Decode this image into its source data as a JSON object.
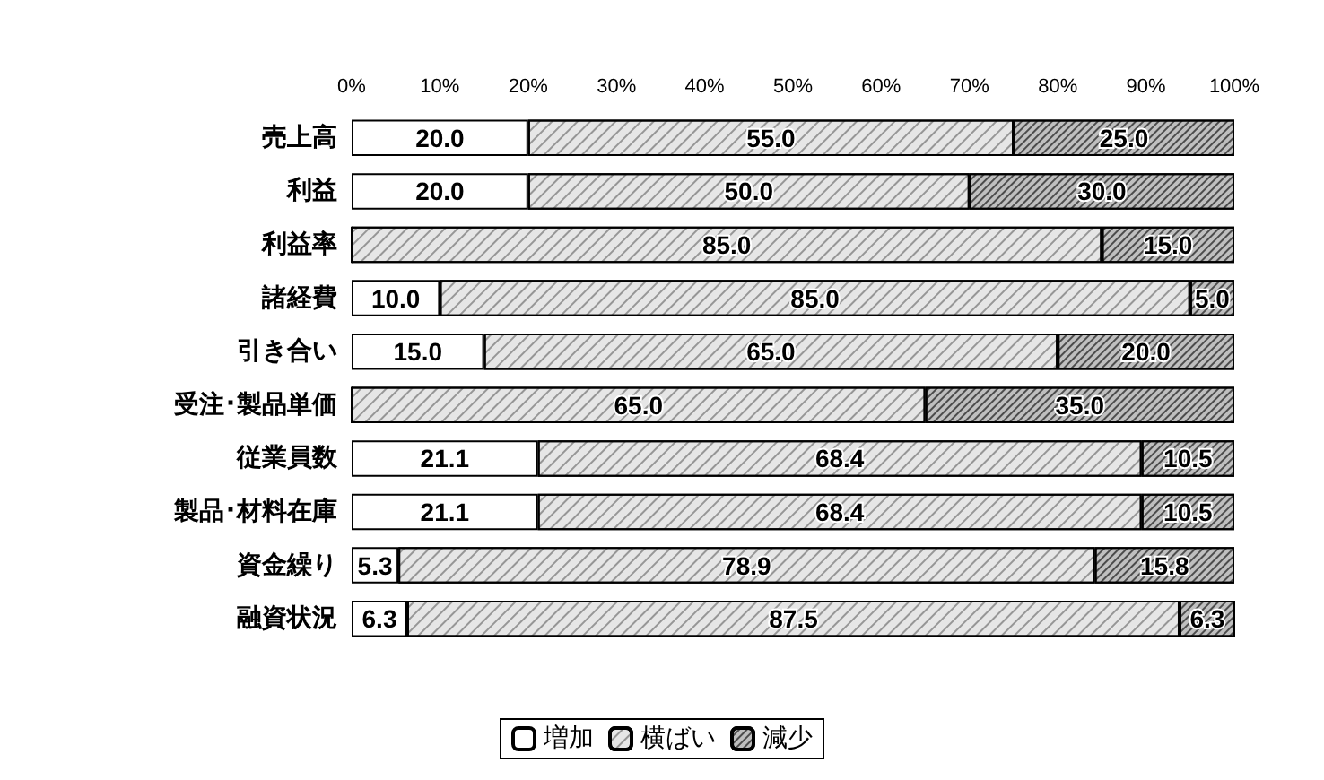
{
  "chart_data": {
    "type": "bar",
    "orientation": "horizontal",
    "stacked": true,
    "categories": [
      "売上高",
      "利益",
      "利益率",
      "諸経費",
      "引き合い",
      "受注･製品単価",
      "従業員数",
      "製品･材料在庫",
      "資金繰り",
      "融資状況"
    ],
    "series": [
      {
        "name": "増加",
        "color": "#ffffff",
        "values": [
          20.0,
          20.0,
          0,
          10.0,
          15.0,
          0,
          21.1,
          21.1,
          5.3,
          6.3
        ],
        "value_labels": [
          "20.0",
          "20.0",
          null,
          "10.0",
          "15.0",
          null,
          "21.1",
          "21.1",
          "5.3",
          "6.3"
        ]
      },
      {
        "name": "横ばい",
        "color": "#e6e6e6",
        "values": [
          55.0,
          50.0,
          85.0,
          85.0,
          65.0,
          65.0,
          68.4,
          68.4,
          78.9,
          87.5
        ],
        "value_labels": [
          "55.0",
          "50.0",
          "85.0",
          "85.0",
          "65.0",
          "65.0",
          "68.4",
          "68.4",
          "78.9",
          "87.5"
        ]
      },
      {
        "name": "減少",
        "color": "#bfbfbf",
        "values": [
          25.0,
          30.0,
          15.0,
          5.0,
          20.0,
          35.0,
          10.5,
          10.5,
          15.8,
          6.3
        ],
        "value_labels": [
          "25.0",
          "30.0",
          "15.0",
          "5.0",
          "20.0",
          "35.0",
          "10.5",
          "10.5",
          "15.8",
          "6.3"
        ]
      }
    ],
    "xlim": [
      0,
      100
    ],
    "xticks": [
      {
        "value": 0,
        "label": "0%"
      },
      {
        "value": 10,
        "label": "10%"
      },
      {
        "value": 20,
        "label": "20%"
      },
      {
        "value": 30,
        "label": "30%"
      },
      {
        "value": 40,
        "label": "40%"
      },
      {
        "value": 50,
        "label": "50%"
      },
      {
        "value": 60,
        "label": "60%"
      },
      {
        "value": 70,
        "label": "70%"
      },
      {
        "value": 80,
        "label": "80%"
      },
      {
        "value": 90,
        "label": "90%"
      },
      {
        "value": 100,
        "label": "100%"
      }
    ],
    "grid": false,
    "legend": "bottom"
  }
}
